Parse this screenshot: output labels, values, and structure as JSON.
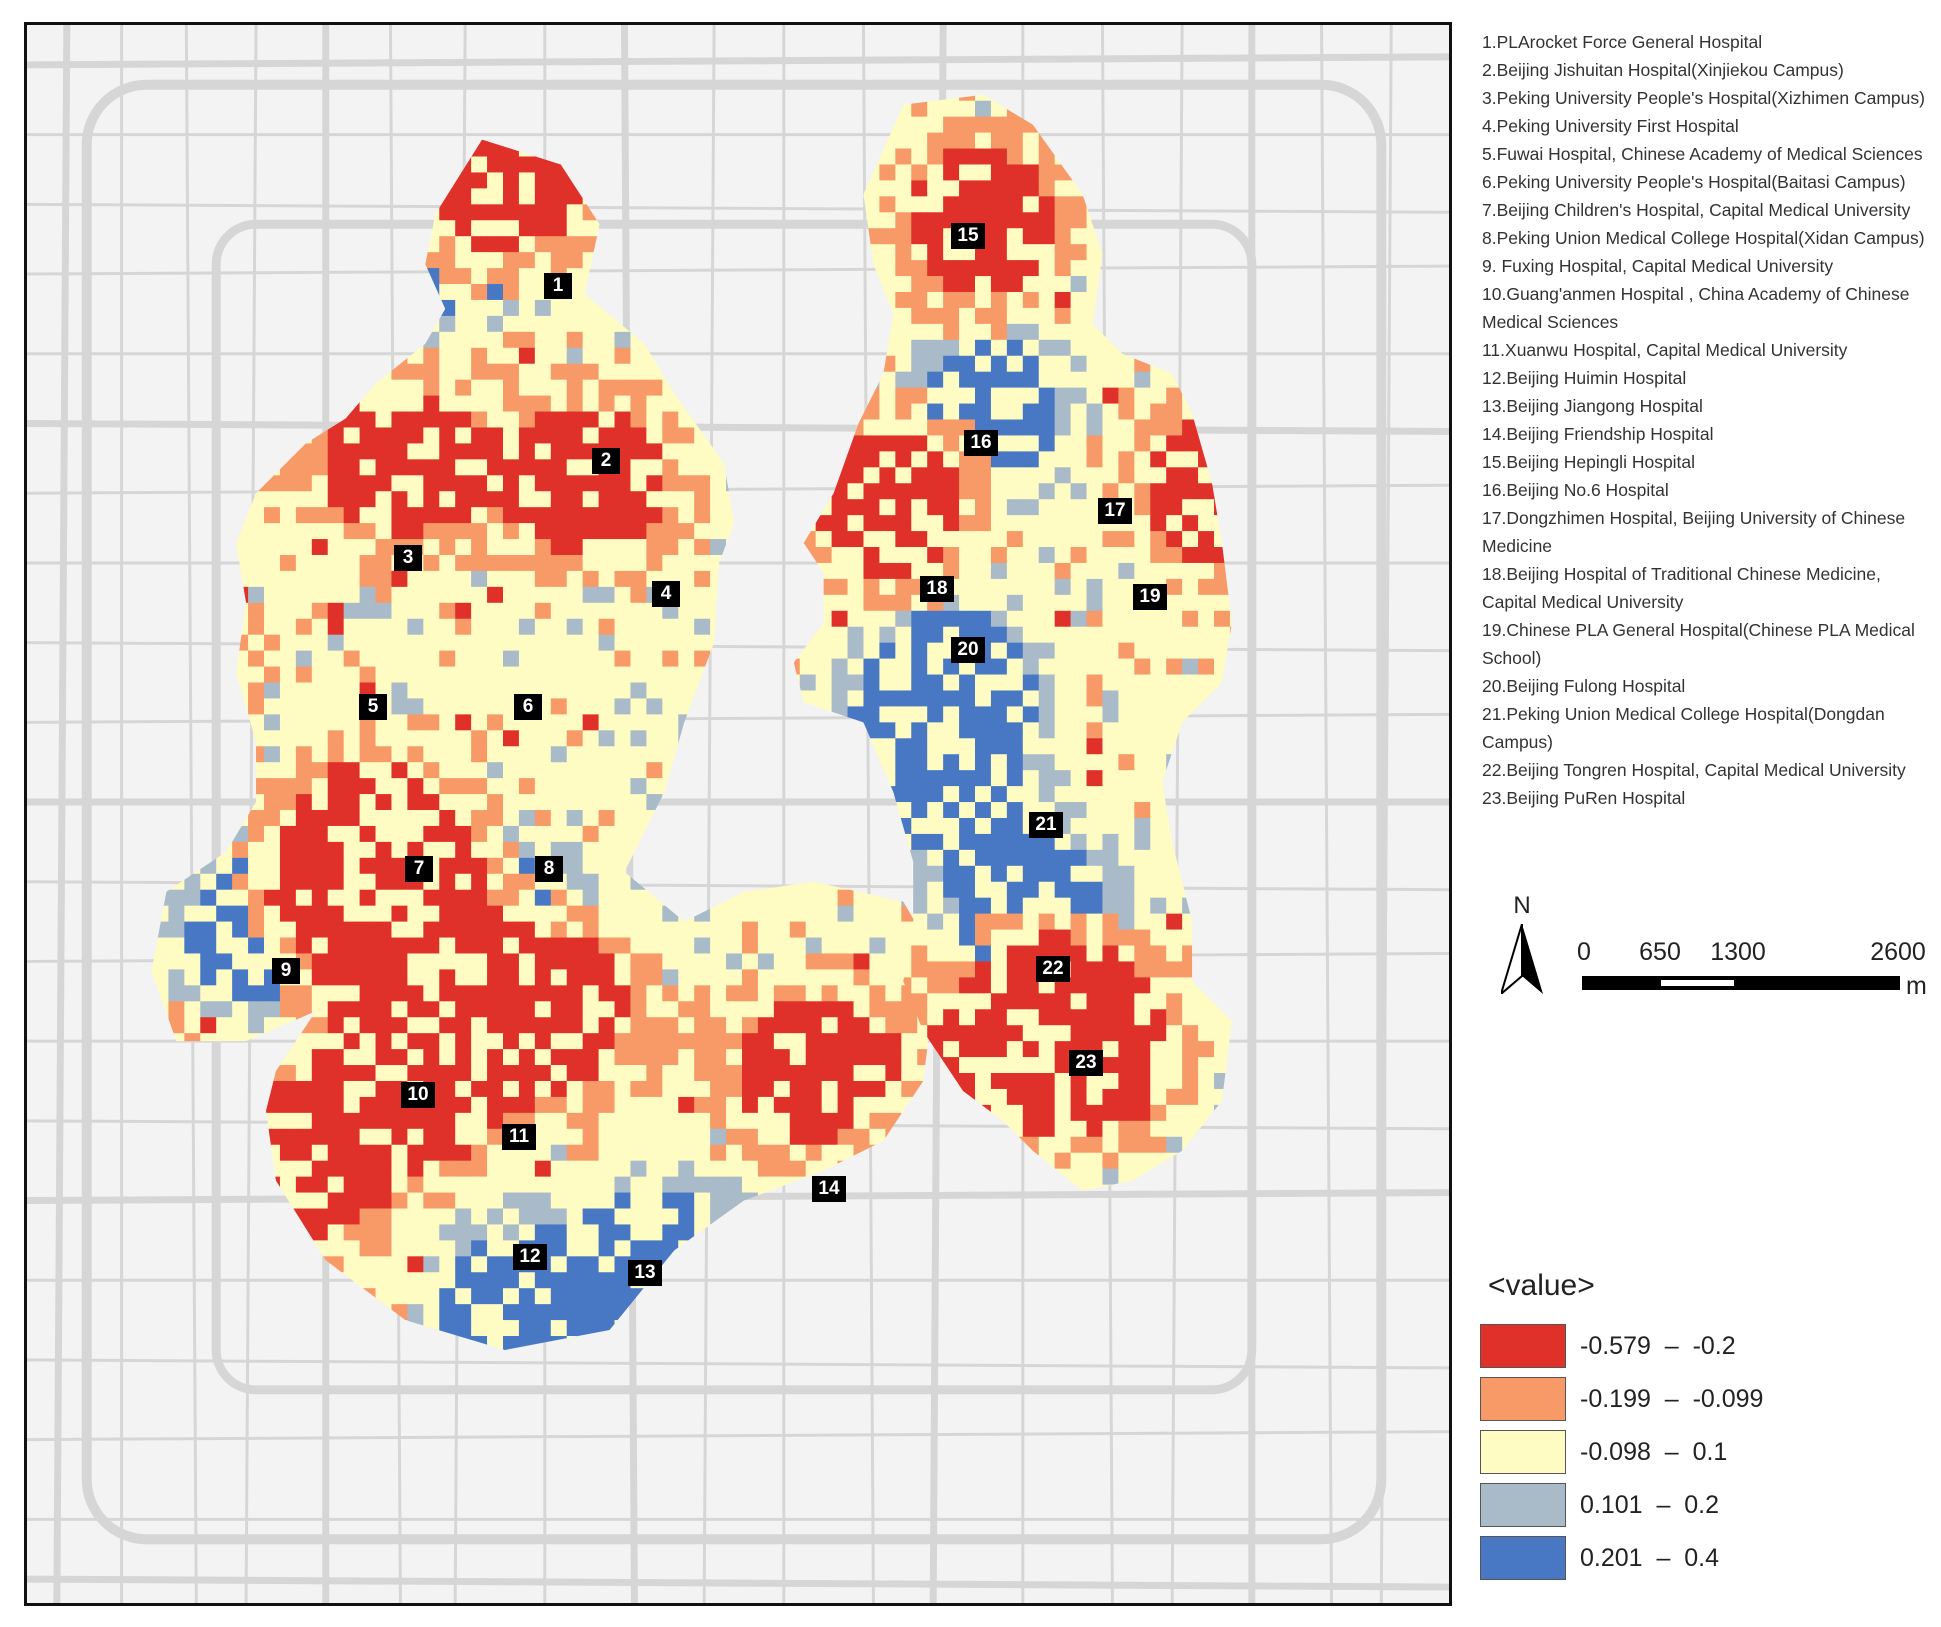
{
  "map": {
    "markers": [
      "1",
      "2",
      "3",
      "4",
      "5",
      "6",
      "7",
      "8",
      "9",
      "10",
      "11",
      "12",
      "13",
      "14",
      "15",
      "16",
      "17",
      "18",
      "19",
      "20",
      "21",
      "22",
      "23"
    ]
  },
  "hospitals": [
    "1.PLArocket Force General Hospital",
    "2.Beijing Jishuitan Hospital(Xinjiekou Campus)",
    "3.Peking University People's Hospital(Xizhimen Campus)",
    "4.Peking University First Hospital",
    "5.Fuwai Hospital, Chinese Academy of Medical Sciences",
    "6.Peking University People's Hospital(Baitasi Campus)",
    "7.Beijing Children's Hospital, Capital Medical University",
    "8.Peking Union Medical College Hospital(Xidan Campus)",
    "9. Fuxing Hospital, Capital Medical University",
    "10.Guang'anmen Hospital , China Academy of Chinese",
    "Medical Sciences",
    "11.Xuanwu Hospital, Capital Medical University",
    "12.Beijing Huimin Hospital",
    "13.Beijing Jiangong Hospital",
    "14.Beijing Friendship Hospital",
    "15.Beijing Hepingli Hospital",
    "16.Beijing No.6 Hospital",
    "17.Dongzhimen Hospital, Beijing University of Chinese",
    "Medicine",
    "18.Beijing Hospital of Traditional Chinese Medicine,",
    "Capital Medical University",
    "19.Chinese PLA General Hospital(Chinese PLA Medical",
    "School)",
    "20.Beijing Fulong Hospital",
    "21.Peking Union Medical College Hospital(Dongdan",
    "Campus)",
    "22.Beijing Tongren Hospital, Capital Medical University",
    "23.Beijing PuRen Hospital"
  ],
  "north": {
    "label": "N"
  },
  "scale": {
    "ticks": [
      "0",
      "650",
      "1300",
      "2600"
    ],
    "unit": "m"
  },
  "legend": {
    "title": "<value>",
    "classes": [
      {
        "label": "-0.579  –  -0.2",
        "color": "#e0302a"
      },
      {
        "label": "-0.199  –  -0.099",
        "color": "#f79a67"
      },
      {
        "label": "-0.098  –  0.1",
        "color": "#fefbc3"
      },
      {
        "label": "0.101  –  0.2",
        "color": "#a9bac9"
      },
      {
        "label": "0.201  –  0.4",
        "color": "#4878c4"
      }
    ]
  }
}
